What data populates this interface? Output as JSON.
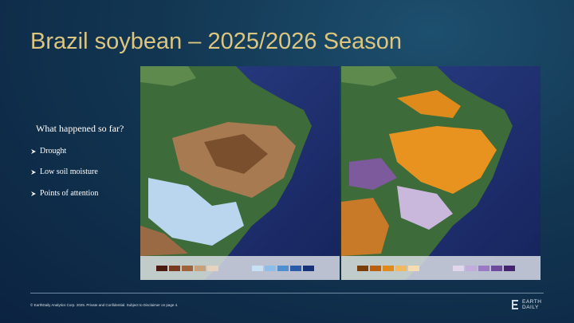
{
  "title": "Brazil soybean – 2025/2026 Season",
  "subheading": "What happened so far?",
  "bullets": [
    "Drought",
    "Low soil moisture",
    "Points of attention"
  ],
  "footer": "© EarthDaily Analytics Corp. 2025. Private and Confidential. Subject to Disclaimer on page 4.",
  "logo": "EARTH DAILY"
}
